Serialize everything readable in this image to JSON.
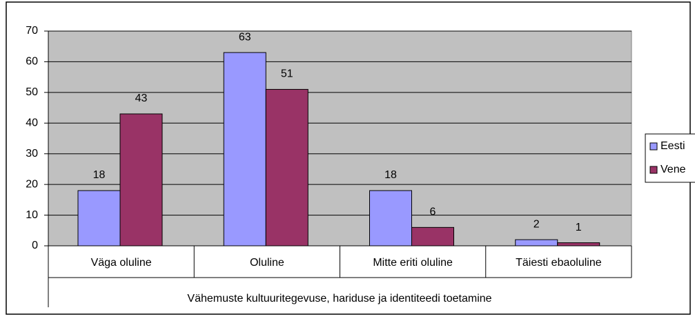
{
  "chart_data": {
    "type": "bar",
    "categories": [
      "Väga oluline",
      "Oluline",
      "Mitte eriti oluline",
      "Täiesti ebaoluline"
    ],
    "x_label": "Vähemuste kultuuritegevuse, hariduse ja identiteedi toetamine",
    "series": [
      {
        "name": "Eesti",
        "color": "#9999ff",
        "values": [
          18,
          63,
          18,
          2
        ]
      },
      {
        "name": "Vene",
        "color": "#993366",
        "values": [
          43,
          51,
          6,
          1
        ]
      }
    ],
    "ylim": [
      0,
      70
    ],
    "yticks": [
      0,
      10,
      20,
      30,
      40,
      50,
      60,
      70
    ],
    "grid": true,
    "legend": "right"
  }
}
